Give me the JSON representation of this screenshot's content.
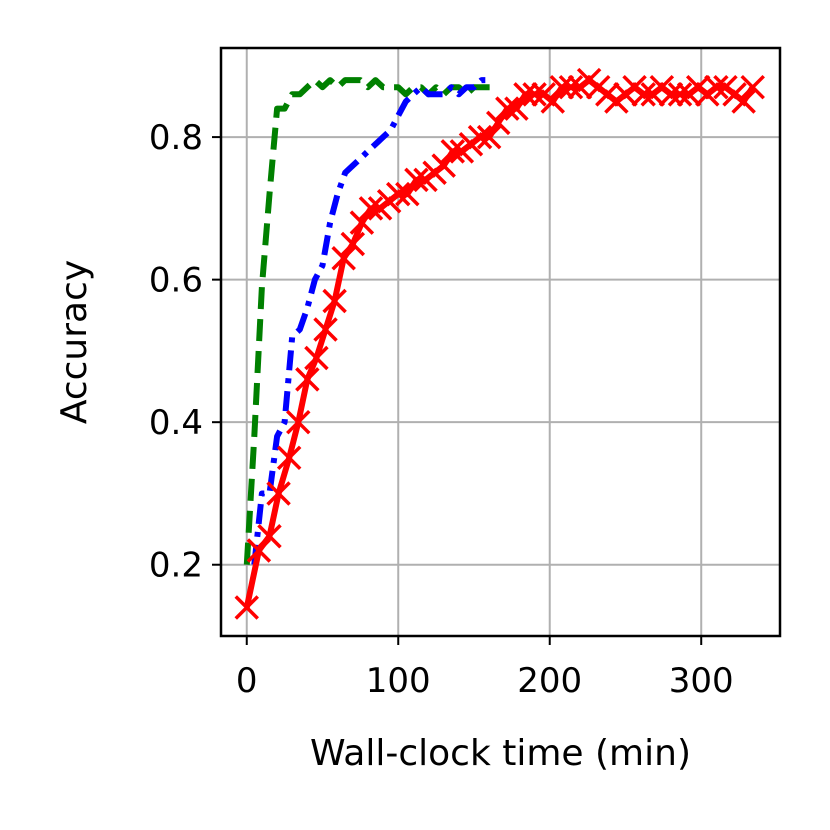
{
  "chart_data": {
    "type": "line",
    "title": "",
    "xlabel": "Wall-clock time (min)",
    "ylabel": "Accuracy",
    "xlim": [
      -17,
      352
    ],
    "ylim": [
      0.1,
      0.925
    ],
    "xticks": [
      0,
      100,
      200,
      300
    ],
    "xtick_labels": [
      "0",
      "100",
      "200",
      "300"
    ],
    "yticks": [
      0.2,
      0.4,
      0.6,
      0.8
    ],
    "ytick_labels": [
      "0.2",
      "0.4",
      "0.6",
      "0.8"
    ],
    "grid": true,
    "series": [
      {
        "color": "#008000",
        "style": "dashed",
        "marker": "none",
        "x": [
          0,
          5,
          10,
          15,
          20,
          25,
          30,
          35,
          40,
          45,
          50,
          55,
          60,
          65,
          70,
          75,
          80,
          85,
          90,
          95,
          100,
          105,
          110,
          115,
          120,
          125,
          130,
          135,
          140,
          145,
          150,
          155,
          160,
          165
        ],
        "y": [
          0.2,
          0.38,
          0.59,
          0.72,
          0.84,
          0.84,
          0.86,
          0.86,
          0.87,
          0.88,
          0.87,
          0.88,
          0.87,
          0.88,
          0.88,
          0.88,
          0.87,
          0.88,
          0.87,
          0.87,
          0.87,
          0.86,
          0.87,
          0.87,
          0.86,
          0.87,
          0.86,
          0.87,
          0.87,
          0.86,
          0.87,
          0.87,
          0.87,
          0.87
        ]
      },
      {
        "color": "#0000ff",
        "style": "dashdot",
        "marker": "none",
        "x": [
          5,
          10,
          15,
          20,
          25,
          30,
          35,
          40,
          45,
          50,
          55,
          60,
          65,
          70,
          75,
          80,
          85,
          90,
          95,
          100,
          105,
          110,
          115,
          120,
          125,
          130,
          135,
          140,
          145,
          150,
          155,
          160
        ],
        "y": [
          0.2,
          0.3,
          0.3,
          0.38,
          0.4,
          0.52,
          0.53,
          0.56,
          0.6,
          0.62,
          0.68,
          0.72,
          0.75,
          0.76,
          0.77,
          0.78,
          0.79,
          0.8,
          0.81,
          0.83,
          0.85,
          0.86,
          0.87,
          0.86,
          0.86,
          0.86,
          0.87,
          0.86,
          0.87,
          0.87,
          0.88,
          0.88
        ]
      },
      {
        "color": "#ff0000",
        "style": "solid",
        "marker": "x",
        "x": [
          0,
          8,
          15,
          21,
          28,
          34,
          40,
          46,
          52,
          58,
          64,
          70,
          76,
          82,
          88,
          94,
          100,
          106,
          112,
          118,
          124,
          130,
          136,
          142,
          148,
          154,
          160,
          166,
          172,
          178,
          184,
          190,
          196,
          202,
          208,
          214,
          220,
          226,
          232,
          238,
          244,
          250,
          256,
          262,
          268,
          274,
          280,
          286,
          292,
          298,
          304,
          310,
          316,
          322,
          328,
          334
        ],
        "y": [
          0.14,
          0.22,
          0.24,
          0.3,
          0.35,
          0.4,
          0.46,
          0.49,
          0.53,
          0.57,
          0.63,
          0.65,
          0.68,
          0.7,
          0.7,
          0.71,
          0.72,
          0.72,
          0.74,
          0.74,
          0.75,
          0.76,
          0.78,
          0.78,
          0.79,
          0.8,
          0.8,
          0.82,
          0.84,
          0.84,
          0.86,
          0.86,
          0.86,
          0.85,
          0.87,
          0.87,
          0.87,
          0.88,
          0.87,
          0.86,
          0.85,
          0.86,
          0.87,
          0.86,
          0.86,
          0.87,
          0.86,
          0.86,
          0.86,
          0.87,
          0.86,
          0.87,
          0.87,
          0.86,
          0.85,
          0.87
        ]
      }
    ]
  }
}
